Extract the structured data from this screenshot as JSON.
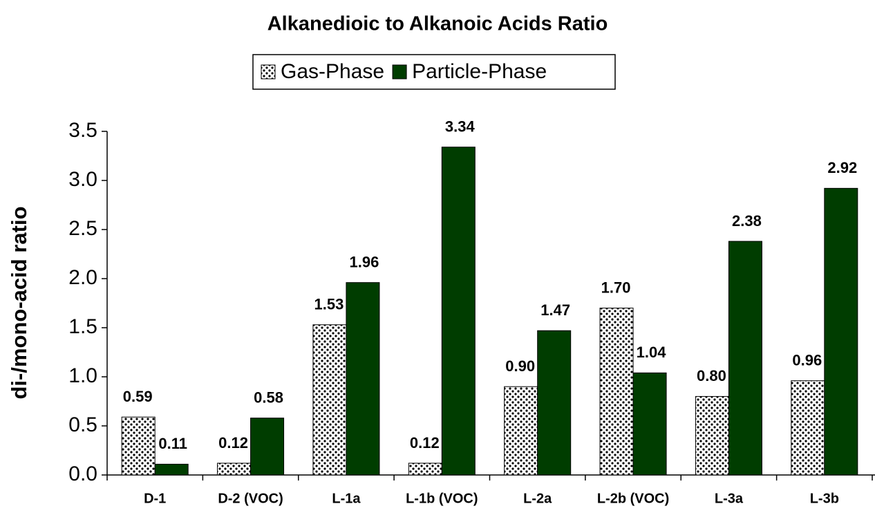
{
  "chart_data": {
    "type": "bar",
    "title": "Alkanedioic to Alkanoic Acids Ratio",
    "y_label": "di-/mono-acid ratio",
    "categories": [
      "D-1",
      "D-2 (VOC)",
      "L-1a",
      "L-1b (VOC)",
      "L-2a",
      "L-2b (VOC)",
      "L-3a",
      "L-3b"
    ],
    "series": [
      {
        "name": "Gas-Phase",
        "color": "#000000",
        "values": [
          0.59,
          0.12,
          1.53,
          0.12,
          0.9,
          1.7,
          0.8,
          0.96
        ],
        "value_labels": [
          "0.59",
          "0.12",
          "1.53",
          "0.12",
          "0.90",
          "1.70",
          "0.80",
          "0.96"
        ]
      },
      {
        "name": "Particle-Phase",
        "color": "#003d00",
        "values": [
          0.11,
          0.58,
          1.96,
          3.34,
          1.47,
          1.04,
          2.38,
          2.92
        ],
        "value_labels": [
          "0.11",
          "0.58",
          "1.96",
          "3.34",
          "1.47",
          "1.04",
          "2.38",
          "2.92"
        ]
      }
    ],
    "ylim": [
      0,
      3.5
    ],
    "yticks": [
      {
        "value": 0,
        "label": "0.0"
      },
      {
        "value": 0.5,
        "label": "0.5"
      },
      {
        "value": 1,
        "label": "1.0"
      },
      {
        "value": 1.5,
        "label": "1.5"
      },
      {
        "value": 2,
        "label": "2.0"
      },
      {
        "value": 2.5,
        "label": "2.5"
      },
      {
        "value": 3,
        "label": "3.0"
      },
      {
        "value": 3.5,
        "label": "3.5"
      }
    ],
    "grid": false,
    "legend": "top"
  }
}
